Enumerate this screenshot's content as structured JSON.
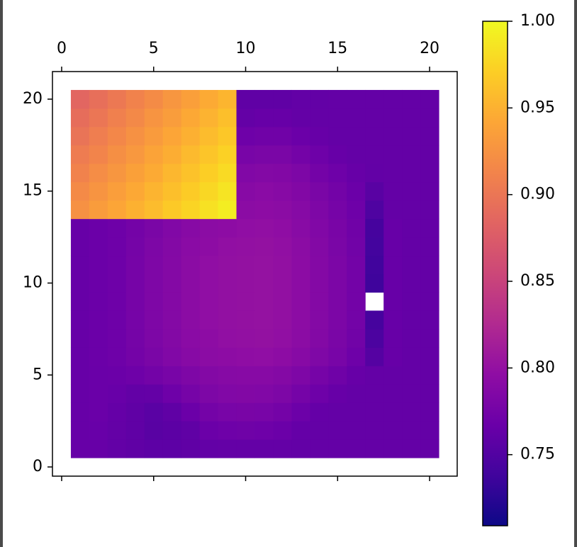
{
  "chart_data": {
    "type": "heatmap",
    "colormap": "plasma",
    "x": [
      1,
      2,
      3,
      4,
      5,
      6,
      7,
      8,
      9,
      10,
      11,
      12,
      13,
      14,
      15,
      16,
      17,
      18,
      19,
      20
    ],
    "y": [
      1,
      2,
      3,
      4,
      5,
      6,
      7,
      8,
      9,
      10,
      11,
      12,
      13,
      14,
      15,
      16,
      17,
      18,
      19,
      20
    ],
    "z": [
      [
        0.765,
        0.765,
        0.762,
        0.76,
        0.758,
        0.758,
        0.76,
        0.762,
        0.763,
        0.763,
        0.763,
        0.763,
        0.762,
        0.763,
        0.763,
        0.763,
        0.763,
        0.763,
        0.763,
        0.763
      ],
      [
        0.765,
        0.766,
        0.763,
        0.76,
        0.755,
        0.757,
        0.76,
        0.768,
        0.77,
        0.771,
        0.77,
        0.768,
        0.764,
        0.763,
        0.763,
        0.763,
        0.763,
        0.763,
        0.763,
        0.763
      ],
      [
        0.765,
        0.767,
        0.764,
        0.76,
        0.756,
        0.76,
        0.768,
        0.775,
        0.778,
        0.779,
        0.778,
        0.775,
        0.769,
        0.764,
        0.763,
        0.763,
        0.763,
        0.763,
        0.763,
        0.763
      ],
      [
        0.765,
        0.767,
        0.766,
        0.762,
        0.763,
        0.77,
        0.777,
        0.782,
        0.785,
        0.786,
        0.785,
        0.782,
        0.776,
        0.77,
        0.765,
        0.763,
        0.763,
        0.763,
        0.763,
        0.763
      ],
      [
        0.765,
        0.767,
        0.768,
        0.77,
        0.774,
        0.778,
        0.783,
        0.787,
        0.789,
        0.79,
        0.79,
        0.788,
        0.783,
        0.777,
        0.771,
        0.765,
        0.763,
        0.763,
        0.763,
        0.763
      ],
      [
        0.765,
        0.768,
        0.77,
        0.775,
        0.78,
        0.785,
        0.79,
        0.793,
        0.795,
        0.796,
        0.797,
        0.795,
        0.79,
        0.784,
        0.778,
        0.77,
        0.752,
        0.765,
        0.763,
        0.763
      ],
      [
        0.765,
        0.768,
        0.77,
        0.776,
        0.782,
        0.787,
        0.792,
        0.795,
        0.798,
        0.799,
        0.8,
        0.798,
        0.793,
        0.787,
        0.78,
        0.773,
        0.746,
        0.765,
        0.763,
        0.763
      ],
      [
        0.765,
        0.768,
        0.77,
        0.777,
        0.783,
        0.788,
        0.793,
        0.797,
        0.799,
        0.8,
        0.801,
        0.799,
        0.794,
        0.788,
        0.781,
        0.774,
        0.742,
        0.765,
        0.763,
        0.763
      ],
      [
        0.765,
        0.768,
        0.77,
        0.777,
        0.783,
        0.788,
        0.793,
        0.797,
        0.799,
        0.8,
        0.801,
        0.799,
        0.794,
        0.788,
        0.781,
        0.774,
        null,
        0.765,
        0.763,
        0.763
      ],
      [
        0.765,
        0.768,
        0.77,
        0.777,
        0.783,
        0.788,
        0.793,
        0.797,
        0.799,
        0.8,
        0.801,
        0.799,
        0.794,
        0.788,
        0.781,
        0.774,
        0.737,
        0.765,
        0.763,
        0.763
      ],
      [
        0.765,
        0.768,
        0.77,
        0.777,
        0.783,
        0.788,
        0.793,
        0.797,
        0.799,
        0.8,
        0.801,
        0.799,
        0.794,
        0.788,
        0.781,
        0.774,
        0.738,
        0.765,
        0.763,
        0.763
      ],
      [
        0.765,
        0.768,
        0.77,
        0.776,
        0.782,
        0.787,
        0.792,
        0.795,
        0.798,
        0.799,
        0.8,
        0.798,
        0.793,
        0.787,
        0.78,
        0.773,
        0.74,
        0.765,
        0.763,
        0.763
      ],
      [
        0.765,
        0.768,
        0.77,
        0.775,
        0.78,
        0.785,
        0.79,
        0.793,
        0.795,
        0.797,
        0.798,
        0.796,
        0.791,
        0.785,
        0.779,
        0.772,
        0.742,
        0.765,
        0.763,
        0.763
      ],
      [
        0.924,
        0.933,
        0.941,
        0.95,
        0.958,
        0.967,
        0.975,
        0.984,
        0.992,
        0.793,
        0.795,
        0.793,
        0.789,
        0.783,
        0.777,
        0.77,
        0.748,
        0.763,
        0.763,
        0.763
      ],
      [
        0.918,
        0.926,
        0.935,
        0.943,
        0.952,
        0.96,
        0.969,
        0.977,
        0.986,
        0.79,
        0.792,
        0.79,
        0.786,
        0.78,
        0.774,
        0.768,
        0.755,
        0.763,
        0.763,
        0.763
      ],
      [
        0.911,
        0.92,
        0.928,
        0.937,
        0.945,
        0.954,
        0.962,
        0.971,
        0.979,
        0.785,
        0.787,
        0.786,
        0.782,
        0.775,
        0.77,
        0.765,
        0.762,
        0.763,
        0.763,
        0.763
      ],
      [
        0.905,
        0.913,
        0.922,
        0.93,
        0.939,
        0.947,
        0.956,
        0.964,
        0.973,
        0.778,
        0.78,
        0.78,
        0.775,
        0.77,
        0.765,
        0.763,
        0.763,
        0.763,
        0.763,
        0.763
      ],
      [
        0.898,
        0.907,
        0.915,
        0.924,
        0.932,
        0.941,
        0.949,
        0.958,
        0.966,
        0.77,
        0.772,
        0.772,
        0.768,
        0.765,
        0.763,
        0.763,
        0.763,
        0.763,
        0.763,
        0.763
      ],
      [
        0.892,
        0.9,
        0.909,
        0.917,
        0.926,
        0.934,
        0.943,
        0.951,
        0.96,
        0.763,
        0.765,
        0.765,
        0.763,
        0.763,
        0.763,
        0.763,
        0.763,
        0.763,
        0.763,
        0.763
      ],
      [
        0.885,
        0.894,
        0.902,
        0.911,
        0.919,
        0.928,
        0.936,
        0.945,
        0.953,
        0.76,
        0.76,
        0.76,
        0.762,
        0.762,
        0.763,
        0.763,
        0.763,
        0.763,
        0.763,
        0.763
      ]
    ],
    "xlim": [
      -0.5,
      21.5
    ],
    "ylim": [
      -0.5,
      21.5
    ],
    "xticks": [
      0,
      5,
      10,
      15,
      20
    ],
    "yticks": [
      0,
      5,
      10,
      15,
      20
    ],
    "clim": [
      0.709,
      1.0
    ],
    "cticks": [
      0.75,
      {
        "value": 0.8,
        "label": "0.80"
      },
      0.85,
      {
        "value": 0.9,
        "label": "0.90"
      },
      0.95,
      {
        "value": 1.0,
        "label": "1.00"
      }
    ]
  }
}
